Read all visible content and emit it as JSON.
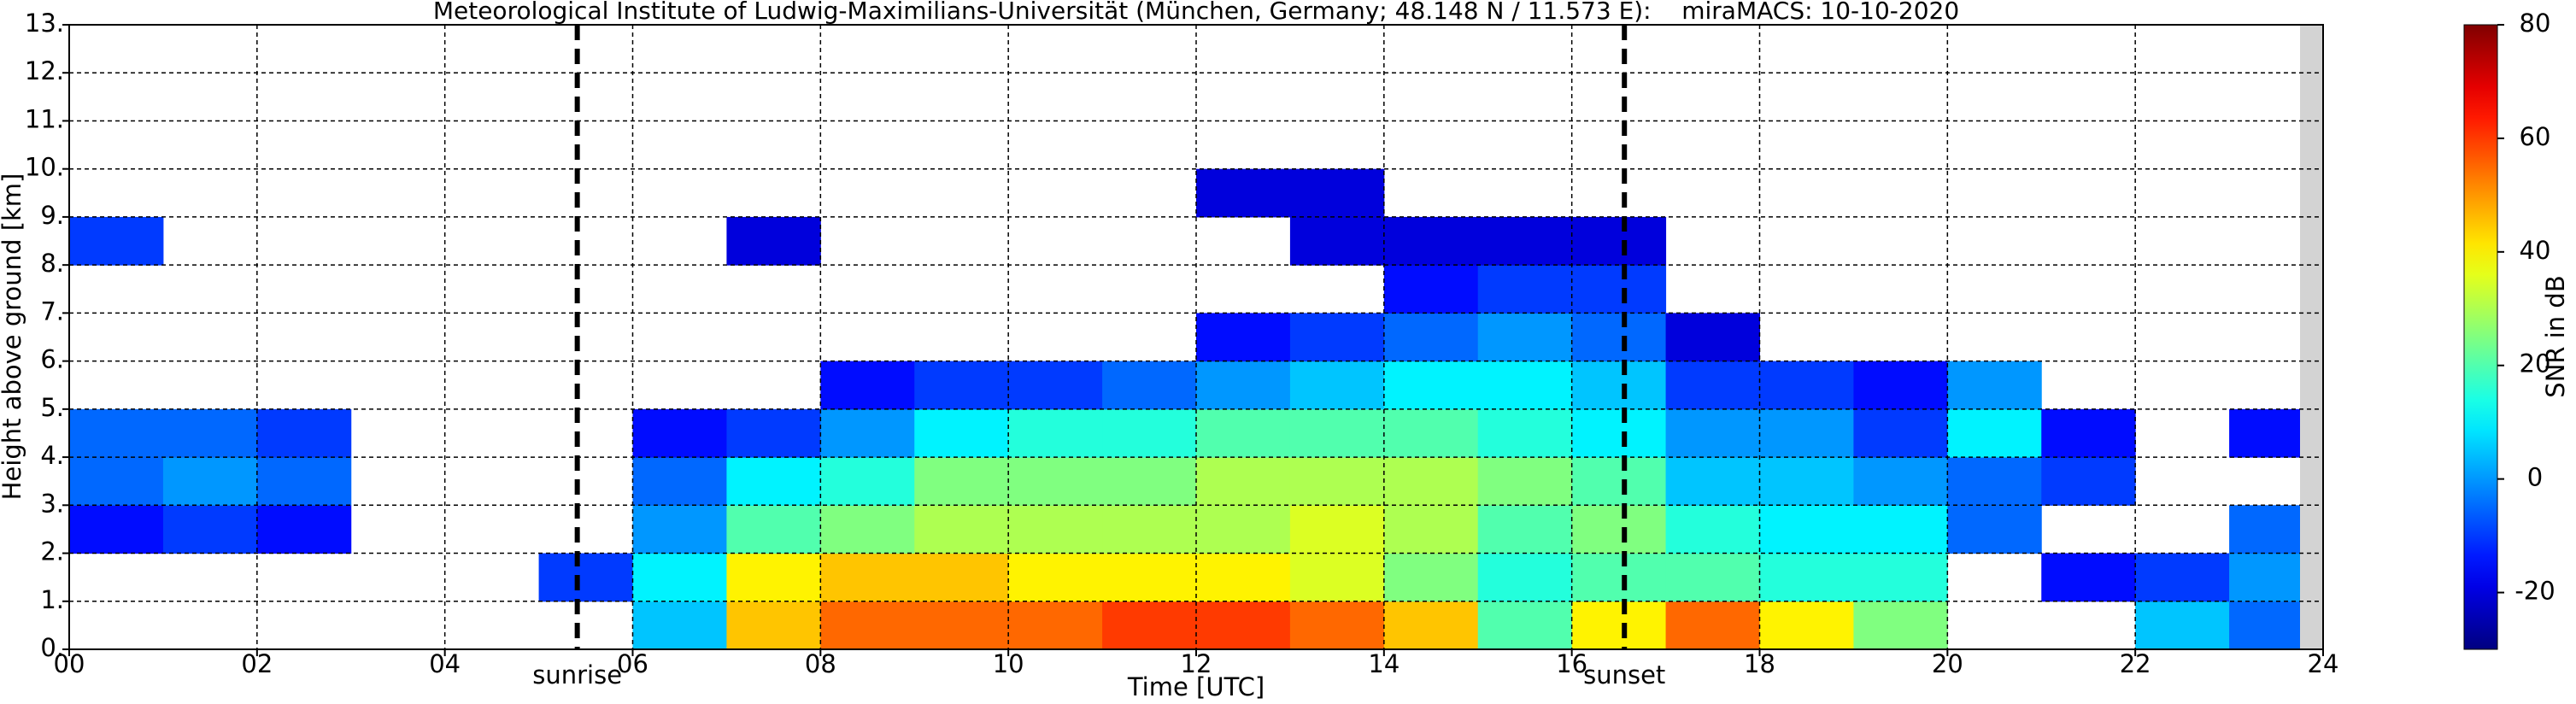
{
  "chart_data": {
    "type": "heatmap",
    "title": "Meteorological Institute of Ludwig-Maximilians-Universität (München, Germany; 48.148 N / 11.573 E):    miraMACS: 10-10-2020",
    "x_label": "Time [UTC]",
    "y_label": "Height above ground [km]",
    "colorbar_label": "SNR in dB",
    "colormap": "jet",
    "grid": true,
    "xlim": [
      0,
      24
    ],
    "ylim": [
      0,
      13
    ],
    "clim": [
      -30,
      80
    ],
    "xticks": [
      {
        "value": 0,
        "label": "00"
      },
      {
        "value": 2,
        "label": "02"
      },
      {
        "value": 4,
        "label": "04"
      },
      {
        "value": 6,
        "label": "06"
      },
      {
        "value": 8,
        "label": "08"
      },
      10,
      12,
      14,
      16,
      18,
      20,
      22,
      24
    ],
    "yticks": [
      {
        "value": 0,
        "label": "0."
      },
      {
        "value": 1,
        "label": "1."
      },
      {
        "value": 2,
        "label": "2."
      },
      {
        "value": 3,
        "label": "3."
      },
      {
        "value": 4,
        "label": "4."
      },
      {
        "value": 5,
        "label": "5."
      },
      {
        "value": 6,
        "label": "6."
      },
      {
        "value": 7,
        "label": "7."
      },
      {
        "value": 8,
        "label": "8."
      },
      {
        "value": 9,
        "label": "9."
      },
      {
        "value": 10,
        "label": "10."
      },
      {
        "value": 11,
        "label": "11."
      },
      {
        "value": 12,
        "label": "12."
      },
      {
        "value": 13,
        "label": "13."
      }
    ],
    "cticks": [
      -20,
      0,
      20,
      40,
      60,
      80
    ],
    "x_bins": [
      0,
      1,
      2,
      3,
      4,
      5,
      6,
      7,
      8,
      9,
      10,
      11,
      12,
      13,
      14,
      15,
      16,
      17,
      18,
      19,
      20,
      21,
      22,
      23,
      24
    ],
    "y_bins": [
      0,
      1,
      2,
      3,
      4,
      5,
      6,
      7,
      8,
      9,
      10,
      11,
      12,
      13
    ],
    "values": [
      [
        null,
        null,
        null,
        null,
        null,
        null,
        5,
        45,
        55,
        55,
        55,
        60,
        60,
        55,
        45,
        20,
        40,
        55,
        40,
        25,
        null,
        null,
        5,
        -5
      ],
      [
        null,
        null,
        null,
        null,
        null,
        -10,
        10,
        40,
        45,
        45,
        40,
        40,
        40,
        35,
        25,
        15,
        20,
        20,
        15,
        15,
        null,
        -15,
        -10,
        0
      ],
      [
        -15,
        -10,
        -15,
        null,
        null,
        null,
        0,
        20,
        25,
        30,
        30,
        30,
        30,
        35,
        30,
        20,
        25,
        15,
        10,
        10,
        -5,
        null,
        null,
        -5
      ],
      [
        -5,
        0,
        -5,
        null,
        null,
        null,
        -5,
        10,
        15,
        25,
        25,
        25,
        30,
        30,
        30,
        25,
        20,
        5,
        5,
        0,
        -5,
        -10,
        null,
        null
      ],
      [
        -5,
        -5,
        -10,
        null,
        null,
        null,
        -15,
        -10,
        0,
        10,
        15,
        15,
        20,
        20,
        20,
        15,
        10,
        0,
        0,
        -10,
        10,
        -15,
        null,
        -15
      ],
      [
        null,
        null,
        null,
        null,
        null,
        null,
        null,
        null,
        -15,
        -10,
        -10,
        -5,
        0,
        5,
        10,
        10,
        5,
        -10,
        -10,
        -15,
        0,
        null,
        null,
        null
      ],
      [
        null,
        null,
        null,
        null,
        null,
        null,
        null,
        null,
        null,
        null,
        null,
        null,
        -15,
        -10,
        -5,
        0,
        -5,
        -20,
        null,
        null,
        null,
        null,
        null,
        null
      ],
      [
        null,
        null,
        null,
        null,
        null,
        null,
        null,
        null,
        null,
        null,
        null,
        null,
        null,
        null,
        -15,
        -10,
        -10,
        null,
        null,
        null,
        null,
        null,
        null,
        null
      ],
      [
        -10,
        null,
        null,
        null,
        null,
        null,
        null,
        -20,
        null,
        null,
        null,
        null,
        null,
        -20,
        -20,
        -20,
        -20,
        null,
        null,
        null,
        null,
        null,
        null,
        null
      ],
      [
        null,
        null,
        null,
        null,
        null,
        null,
        null,
        null,
        null,
        null,
        null,
        null,
        -20,
        -20,
        null,
        null,
        null,
        null,
        null,
        null,
        null,
        null,
        null,
        null
      ],
      [
        null,
        null,
        null,
        null,
        null,
        null,
        null,
        null,
        null,
        null,
        null,
        null,
        null,
        null,
        null,
        null,
        null,
        null,
        null,
        null,
        null,
        null,
        null,
        null
      ],
      [
        null,
        null,
        null,
        null,
        null,
        null,
        null,
        null,
        null,
        null,
        null,
        null,
        null,
        null,
        null,
        null,
        null,
        null,
        null,
        null,
        null,
        null,
        null,
        null
      ],
      [
        null,
        null,
        null,
        null,
        null,
        null,
        null,
        null,
        null,
        null,
        null,
        null,
        null,
        null,
        null,
        null,
        null,
        null,
        null,
        null,
        null,
        null,
        null,
        null
      ]
    ],
    "vlines": [
      {
        "x": 5.41,
        "label": "sunrise"
      },
      {
        "x": 16.56,
        "label": "sunset"
      }
    ]
  }
}
